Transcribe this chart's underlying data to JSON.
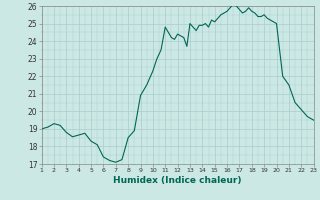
{
  "title": "",
  "xlabel": "Humidex (Indice chaleur)",
  "ylabel": "",
  "bg_color": "#cce8e4",
  "grid_color": "#aacccc",
  "line_color": "#006655",
  "x": [
    1,
    1.5,
    2,
    2.25,
    2.5,
    3,
    3.5,
    4,
    4.5,
    5,
    5.5,
    6,
    6.5,
    7,
    7.5,
    8,
    8.5,
    9,
    9.5,
    10,
    10.33,
    10.66,
    11,
    11.25,
    11.5,
    11.75,
    12,
    12.25,
    12.5,
    12.75,
    13,
    13.25,
    13.5,
    13.75,
    14,
    14.25,
    14.5,
    14.75,
    15,
    15.25,
    15.5,
    15.75,
    16,
    16.25,
    16.5,
    16.75,
    17,
    17.25,
    17.5,
    17.75,
    18,
    18.25,
    18.5,
    18.75,
    19,
    19.25,
    19.5,
    19.75,
    20,
    20.5,
    21,
    21.5,
    22,
    22.5,
    23
  ],
  "y": [
    19.0,
    19.1,
    19.3,
    19.25,
    19.2,
    18.8,
    18.55,
    18.65,
    18.75,
    18.3,
    18.1,
    17.4,
    17.2,
    17.1,
    17.25,
    18.5,
    18.9,
    20.9,
    21.5,
    22.3,
    23.0,
    23.5,
    24.8,
    24.5,
    24.2,
    24.1,
    24.4,
    24.3,
    24.2,
    23.7,
    25.0,
    24.8,
    24.6,
    24.9,
    24.9,
    25.0,
    24.8,
    25.2,
    25.1,
    25.3,
    25.5,
    25.6,
    25.7,
    25.9,
    26.1,
    26.0,
    25.8,
    25.6,
    25.7,
    25.9,
    25.7,
    25.6,
    25.4,
    25.4,
    25.5,
    25.3,
    25.2,
    25.1,
    25.0,
    22.0,
    21.5,
    20.5,
    20.1,
    19.7,
    19.5
  ],
  "ylim": [
    17,
    26
  ],
  "xlim": [
    1,
    23
  ],
  "yticks": [
    17,
    18,
    19,
    20,
    21,
    22,
    23,
    24,
    25,
    26
  ],
  "xticks": [
    1,
    2,
    3,
    4,
    5,
    6,
    7,
    8,
    9,
    10,
    11,
    12,
    13,
    14,
    15,
    16,
    17,
    18,
    19,
    20,
    21,
    22,
    23
  ]
}
